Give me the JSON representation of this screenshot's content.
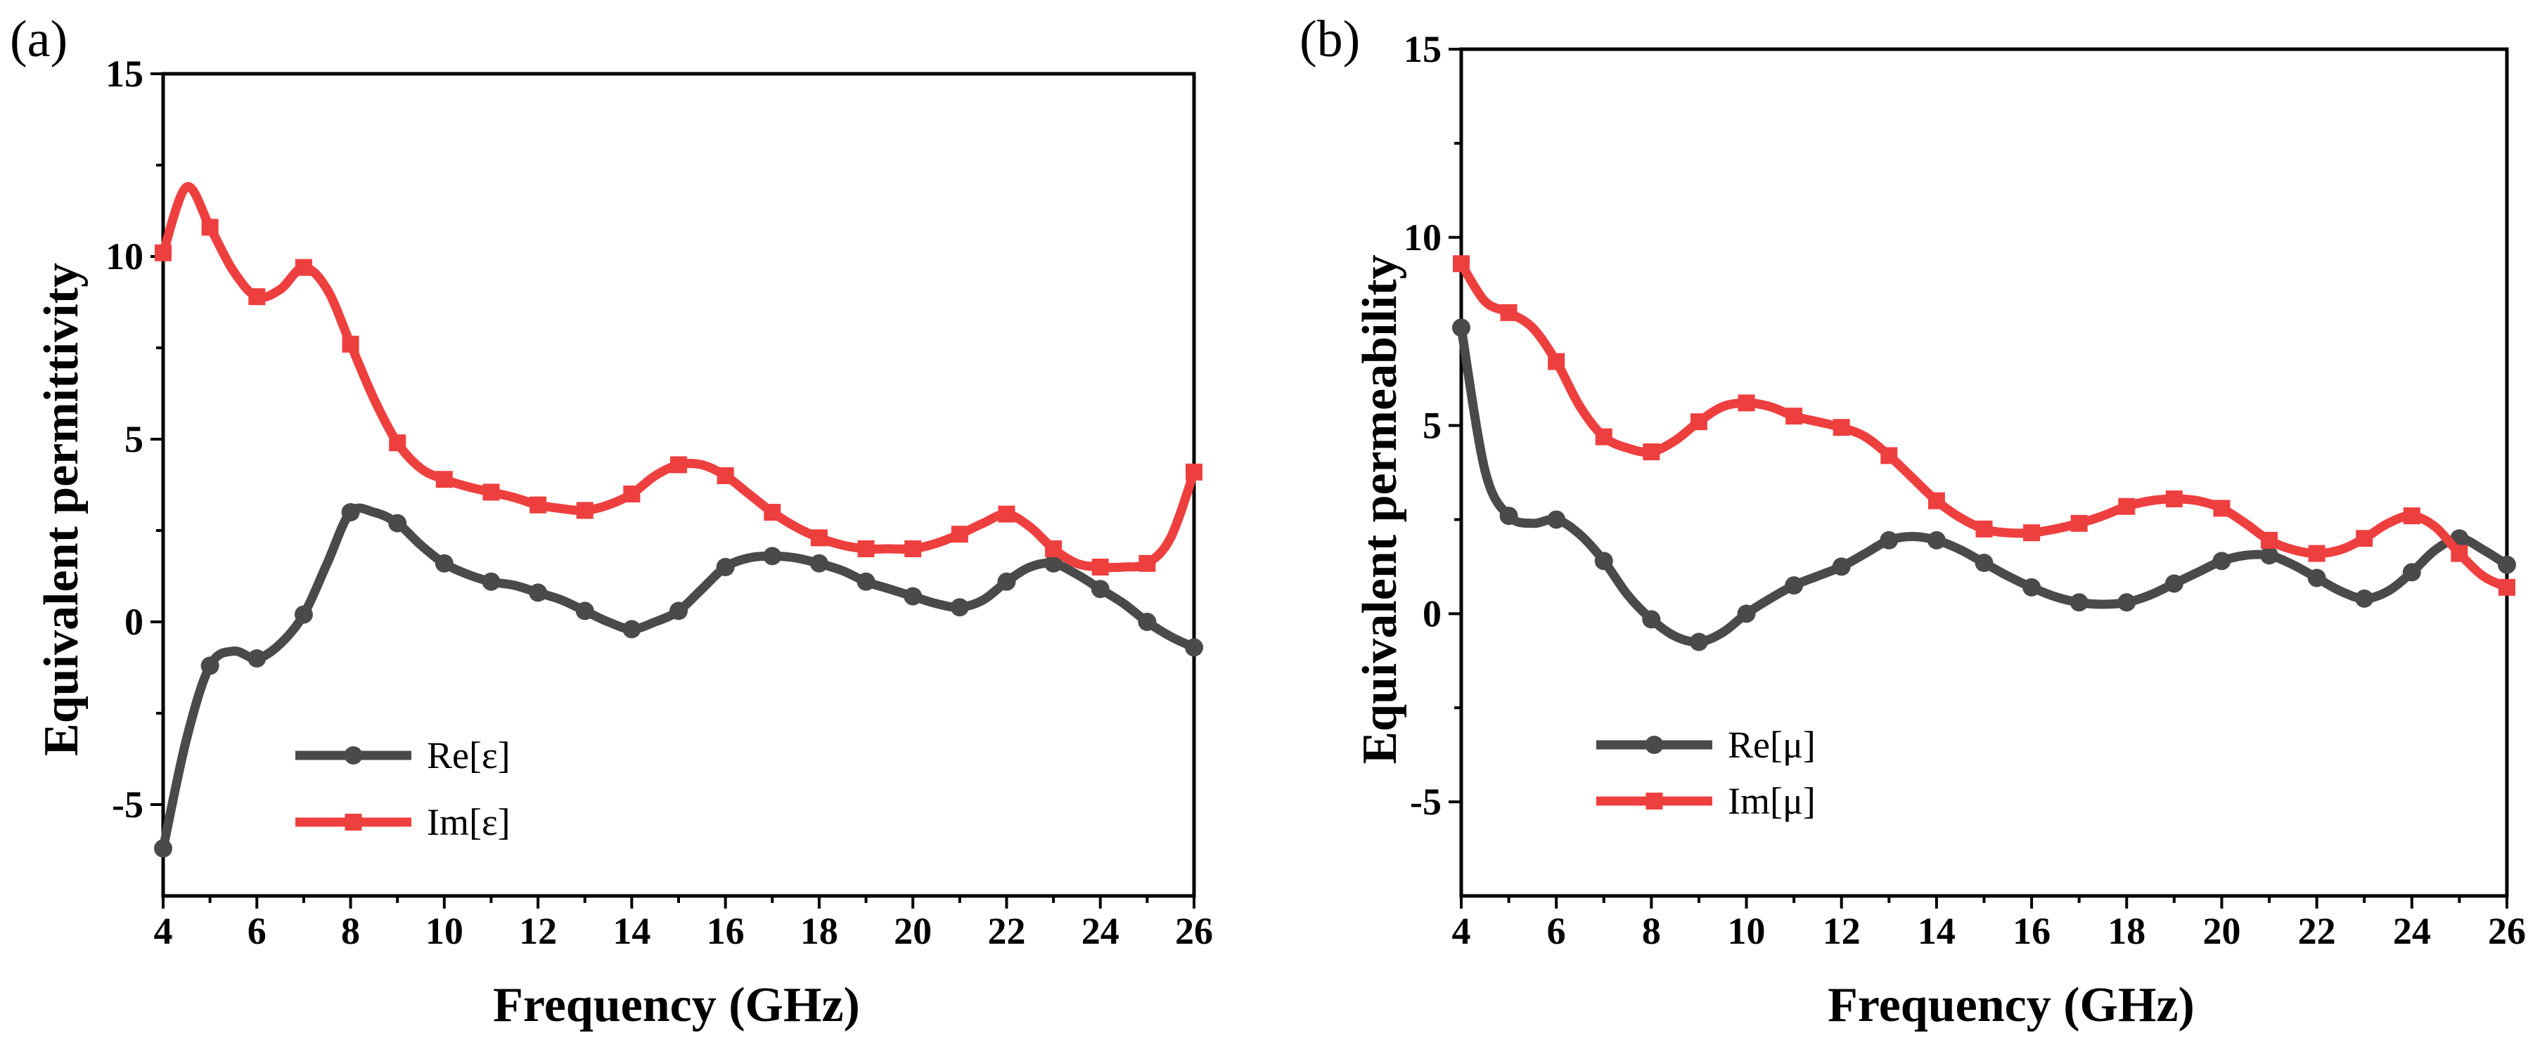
{
  "chart_data": [
    {
      "type": "line",
      "panel_label": "(a)",
      "xlabel": "Frequency (GHz)",
      "ylabel": "Equivalent permittivity",
      "xlim": [
        4,
        26
      ],
      "ylim": [
        -7.5,
        15
      ],
      "xticks": [
        4,
        6,
        8,
        10,
        12,
        14,
        16,
        18,
        20,
        22,
        24,
        26
      ],
      "yticks": [
        -5,
        0,
        5,
        10,
        15
      ],
      "legend_position": "bottom-left",
      "series": [
        {
          "name": "Re[ε]",
          "color": "#4a4a4a",
          "marker": "circle",
          "x": [
            4,
            4.5,
            5,
            5.5,
            6,
            6.5,
            7,
            7.5,
            8,
            8.5,
            9,
            9.5,
            10,
            10.5,
            11,
            11.5,
            12,
            12.5,
            13,
            13.5,
            14,
            14.5,
            15,
            15.5,
            16,
            16.5,
            17,
            17.5,
            18,
            18.5,
            19,
            19.5,
            20,
            20.5,
            21,
            21.5,
            22,
            22.5,
            23,
            23.5,
            24,
            24.5,
            25,
            25.5,
            26
          ],
          "y": [
            -6.2,
            -3.2,
            -1.2,
            -0.8,
            -1.0,
            -0.6,
            0.2,
            1.6,
            3.0,
            3.0,
            2.7,
            2.1,
            1.6,
            1.3,
            1.1,
            1.0,
            0.8,
            0.6,
            0.3,
            0.0,
            -0.2,
            0.0,
            0.3,
            0.9,
            1.5,
            1.75,
            1.8,
            1.75,
            1.6,
            1.4,
            1.1,
            0.9,
            0.7,
            0.5,
            0.4,
            0.6,
            1.1,
            1.5,
            1.6,
            1.3,
            0.9,
            0.5,
            0.0,
            -0.4,
            -0.7
          ],
          "markers_x": [
            4,
            5,
            6,
            7,
            8,
            9,
            10,
            11,
            12,
            13,
            14,
            15,
            16,
            17,
            18,
            19,
            20,
            21,
            22,
            23,
            24,
            25,
            26
          ]
        },
        {
          "name": "Im[ε]",
          "color": "#ee3f3f",
          "marker": "square",
          "x": [
            4,
            4.5,
            5,
            5.5,
            6,
            6.5,
            7,
            7.5,
            8,
            8.5,
            9,
            9.5,
            10,
            10.5,
            11,
            11.5,
            12,
            12.5,
            13,
            13.5,
            14,
            14.5,
            15,
            15.5,
            16,
            16.5,
            17,
            17.5,
            18,
            18.5,
            19,
            19.5,
            20,
            20.5,
            21,
            21.5,
            22,
            22.5,
            23,
            23.5,
            24,
            24.5,
            25,
            25.5,
            26
          ],
          "y": [
            10.1,
            11.9,
            10.8,
            9.6,
            8.9,
            9.1,
            9.7,
            9.1,
            7.6,
            6.1,
            4.9,
            4.2,
            3.9,
            3.7,
            3.55,
            3.4,
            3.2,
            3.1,
            3.05,
            3.2,
            3.5,
            4.0,
            4.3,
            4.3,
            4.0,
            3.5,
            3.0,
            2.6,
            2.3,
            2.1,
            2.0,
            2.0,
            2.0,
            2.15,
            2.4,
            2.7,
            2.95,
            2.6,
            2.0,
            1.6,
            1.5,
            1.5,
            1.6,
            2.3,
            4.1
          ],
          "markers_x": [
            4,
            5,
            6,
            7,
            8,
            9,
            10,
            11,
            12,
            13,
            14,
            15,
            16,
            17,
            18,
            19,
            20,
            21,
            22,
            23,
            24,
            25,
            26
          ]
        }
      ]
    },
    {
      "type": "line",
      "panel_label": "(b)",
      "xlabel": "Frequency (GHz)",
      "ylabel": "Equivalent  permeability",
      "xlim": [
        4,
        26
      ],
      "ylim": [
        -7.5,
        15
      ],
      "xticks": [
        4,
        6,
        8,
        10,
        12,
        14,
        16,
        18,
        20,
        22,
        24,
        26
      ],
      "yticks": [
        -5,
        0,
        5,
        10,
        15
      ],
      "legend_position": "bottom-left",
      "series": [
        {
          "name": "Re[μ]",
          "color": "#4a4a4a",
          "marker": "circle",
          "x": [
            4,
            4.5,
            5,
            5.5,
            6,
            6.5,
            7,
            7.5,
            8,
            8.5,
            9,
            9.5,
            10,
            10.5,
            11,
            11.5,
            12,
            12.5,
            13,
            13.5,
            14,
            14.5,
            15,
            15.5,
            16,
            16.5,
            17,
            17.5,
            18,
            18.5,
            19,
            19.5,
            20,
            20.5,
            21,
            21.5,
            22,
            22.5,
            23,
            23.5,
            24,
            24.5,
            25,
            25.5,
            26
          ],
          "y": [
            7.6,
            3.8,
            2.6,
            2.4,
            2.5,
            2.1,
            1.4,
            0.5,
            -0.15,
            -0.6,
            -0.75,
            -0.5,
            0.0,
            0.4,
            0.75,
            1.0,
            1.25,
            1.6,
            1.95,
            2.05,
            1.95,
            1.7,
            1.35,
            1.0,
            0.7,
            0.45,
            0.3,
            0.25,
            0.3,
            0.5,
            0.8,
            1.1,
            1.4,
            1.55,
            1.55,
            1.3,
            0.95,
            0.6,
            0.4,
            0.6,
            1.1,
            1.7,
            2.0,
            1.7,
            1.3
          ],
          "markers_x": [
            4,
            5,
            6,
            7,
            8,
            9,
            10,
            11,
            12,
            13,
            14,
            15,
            16,
            17,
            18,
            19,
            20,
            21,
            22,
            23,
            24,
            25,
            26
          ]
        },
        {
          "name": "Im[μ]",
          "color": "#ee3f3f",
          "marker": "square",
          "x": [
            4,
            4.5,
            5,
            5.5,
            6,
            6.5,
            7,
            7.5,
            8,
            8.5,
            9,
            9.5,
            10,
            10.5,
            11,
            11.5,
            12,
            12.5,
            13,
            13.5,
            14,
            14.5,
            15,
            15.5,
            16,
            16.5,
            17,
            17.5,
            18,
            18.5,
            19,
            19.5,
            20,
            20.5,
            21,
            21.5,
            22,
            22.5,
            23,
            23.5,
            24,
            24.5,
            25,
            25.5,
            26
          ],
          "y": [
            9.3,
            8.3,
            8.0,
            7.6,
            6.7,
            5.5,
            4.7,
            4.4,
            4.3,
            4.6,
            5.1,
            5.5,
            5.6,
            5.5,
            5.25,
            5.1,
            4.95,
            4.7,
            4.2,
            3.6,
            3.0,
            2.55,
            2.25,
            2.15,
            2.15,
            2.25,
            2.4,
            2.6,
            2.85,
            3.0,
            3.05,
            3.0,
            2.8,
            2.4,
            1.95,
            1.7,
            1.6,
            1.7,
            2.0,
            2.4,
            2.6,
            2.3,
            1.6,
            1.0,
            0.7
          ],
          "markers_x": [
            4,
            5,
            6,
            7,
            8,
            9,
            10,
            11,
            12,
            13,
            14,
            15,
            16,
            17,
            18,
            19,
            20,
            21,
            22,
            23,
            24,
            25,
            26
          ]
        }
      ]
    }
  ]
}
